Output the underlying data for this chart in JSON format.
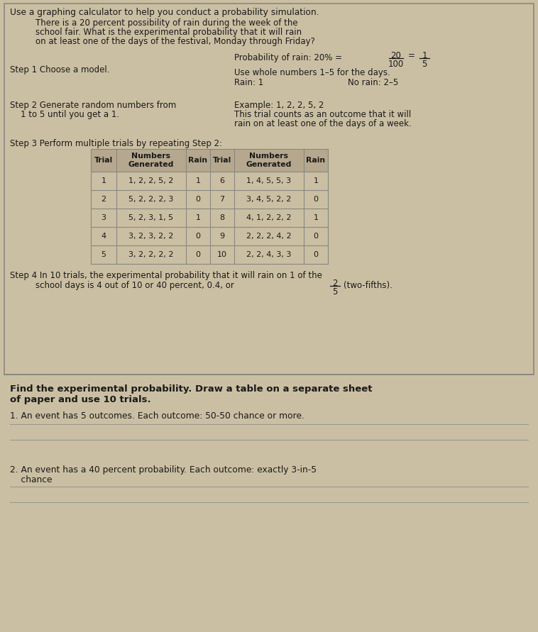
{
  "bg_color": "#cbbfa3",
  "page_bg": "#cbbfa3",
  "title_line": "Use a graphing calculator to help you conduct a probability simulation.",
  "intro_text": "There is a 20 percent possibility of rain during the week of the\nschool fair. What is the experimental probability that it will rain\non at least one of the days of the festival, Monday through Friday?",
  "step1_label": "Step 1 Choose a model.",
  "step1_right_line1": "Probability of rain: 20% =",
  "step1_frac1_num": "20",
  "step1_frac1_den": "100",
  "step1_frac2_num": "1",
  "step1_frac2_den": "5",
  "step1_right_line2": "Use whole numbers 1–5 for the days.",
  "step1_rain": "Rain: 1",
  "step1_norain": "No rain: 2–5",
  "step2_left1": "Step 2 Generate random numbers from",
  "step2_left2": "    1 to 5 until you get a 1.",
  "step2_right_line1": "Example: 1, 2, 2, 5, 2",
  "step2_right_line2": "This trial counts as an outcome that it will",
  "step2_right_line3": "rain on at least one of the days of a week.",
  "step3_label": "Step 3 Perform multiple trials by repeating Step 2:",
  "table_headers": [
    "Trial",
    "Numbers\nGenerated",
    "Rain",
    "Trial",
    "Numbers\nGenerated",
    "Rain"
  ],
  "table_rows": [
    [
      "1",
      "1, 2, 2, 5, 2",
      "1",
      "6",
      "1, 4, 5, 5, 3",
      "1"
    ],
    [
      "2",
      "5, 2, 2, 2, 3",
      "0",
      "7",
      "3, 4, 5, 2, 2",
      "0"
    ],
    [
      "3",
      "5, 2, 3, 1, 5",
      "1",
      "8",
      "4, 1, 2, 2, 2",
      "1"
    ],
    [
      "4",
      "3, 2, 3, 2, 2",
      "0",
      "9",
      "2, 2, 2, 4, 2",
      "0"
    ],
    [
      "5",
      "3, 2, 2, 2, 2",
      "0",
      "10",
      "2, 2, 4, 3, 3",
      "0"
    ]
  ],
  "step4_line1": "Step 4 In 10 trials, the experimental probability that it will rain on 1 of the",
  "step4_line2_pre": "school days is 4 out of 10 or 40 percent, 0.4, or",
  "step4_frac_num": "2",
  "step4_frac_den": "5",
  "step4_line2_post": "(two-fifths).",
  "divider_text1": "Find the experimental probability. Draw a table on a separate sheet",
  "divider_text2": "of paper and use 10 trials.",
  "q1_text": "1. An event has 5 outcomes. Each outcome: 50-50 chance or more.",
  "q2_line1": "2. An event has a 40 percent probability. Each outcome: exactly 3-in-5",
  "q2_line2": "    chance",
  "table_header_bg": "#b5a88e",
  "table_cell_bg": "#cbbfa3",
  "border_color": "#888880",
  "line_color": "#999990",
  "text_color": "#1a1a1a"
}
